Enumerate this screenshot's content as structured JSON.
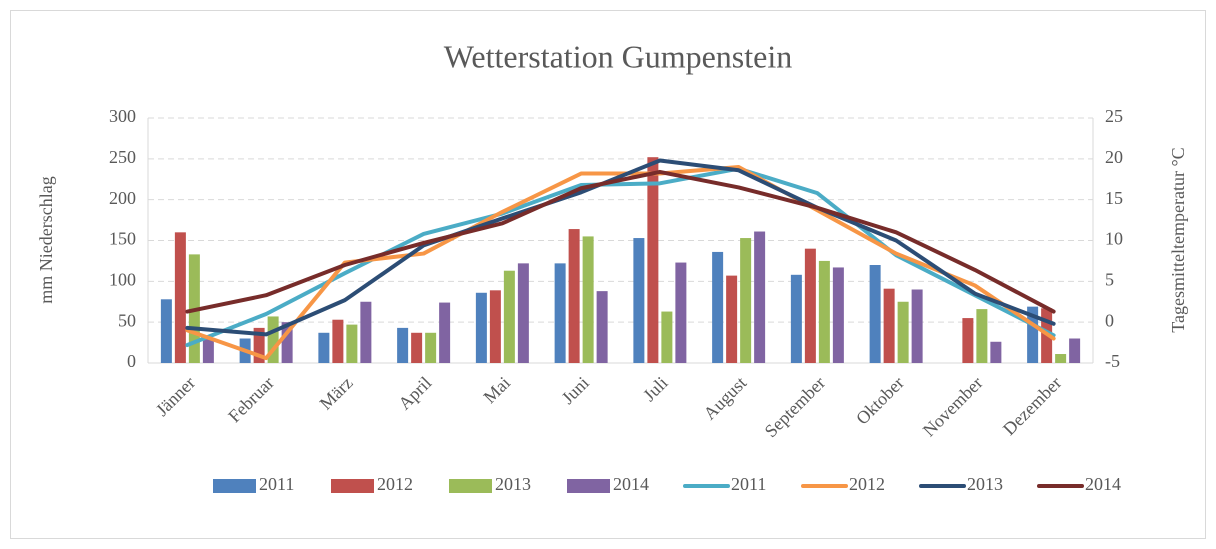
{
  "chart_data": {
    "type": "combo",
    "title": "Wetterstation Gumpenstein",
    "y_label": "mm Niederschlag",
    "y2_label": "Tagesmitteltemperatur °C",
    "categories": [
      "Jänner",
      "Februar",
      "März",
      "April",
      "Mai",
      "Juni",
      "Juli",
      "August",
      "September",
      "Oktober",
      "November",
      "Dezember"
    ],
    "ylim": [
      0,
      300
    ],
    "yticks": [
      0,
      50,
      100,
      150,
      200,
      250,
      300
    ],
    "y2lim": [
      -5,
      25
    ],
    "y2ticks": [
      -5,
      0,
      5,
      10,
      15,
      20,
      25
    ],
    "grid": true,
    "legend": "bottom",
    "series": [
      {
        "name": "2011",
        "type": "bar",
        "color": "#4f81bd",
        "values": [
          78,
          30,
          37,
          43,
          86,
          122,
          153,
          136,
          108,
          120,
          null,
          69
        ]
      },
      {
        "name": "2012",
        "type": "bar",
        "color": "#c0504d",
        "values": [
          160,
          43,
          53,
          37,
          89,
          164,
          252,
          107,
          140,
          91,
          55,
          67
        ]
      },
      {
        "name": "2013",
        "type": "bar",
        "color": "#9bbb59",
        "values": [
          133,
          57,
          47,
          37,
          113,
          155,
          63,
          153,
          125,
          75,
          66,
          11
        ]
      },
      {
        "name": "2014",
        "type": "bar",
        "color": "#8064a2",
        "values": [
          30,
          50,
          75,
          74,
          122,
          88,
          123,
          161,
          117,
          90,
          26,
          30
        ]
      },
      {
        "name": "2011",
        "type": "line",
        "axis": "y2",
        "color": "#4bacc6",
        "values": [
          -2.8,
          1.0,
          6.0,
          10.8,
          13.3,
          16.8,
          17.0,
          18.8,
          15.8,
          8.2,
          3.3,
          -1.6
        ]
      },
      {
        "name": "2012",
        "type": "line",
        "axis": "y2",
        "color": "#f79646",
        "values": [
          -1.0,
          -4.4,
          7.3,
          8.4,
          13.5,
          18.2,
          18.2,
          19.0,
          13.7,
          8.4,
          4.5,
          -2.0
        ]
      },
      {
        "name": "2013",
        "type": "line",
        "axis": "y2",
        "color": "#2c4d75",
        "values": [
          -0.7,
          -1.5,
          2.7,
          9.4,
          12.7,
          15.9,
          19.8,
          18.6,
          14.0,
          10.0,
          3.5,
          -0.2
        ]
      },
      {
        "name": "2014",
        "type": "line",
        "axis": "y2",
        "color": "#772c2a",
        "values": [
          1.3,
          3.3,
          7.0,
          9.7,
          12.1,
          16.4,
          18.4,
          16.5,
          14.0,
          11.0,
          6.4,
          1.3
        ]
      }
    ]
  }
}
